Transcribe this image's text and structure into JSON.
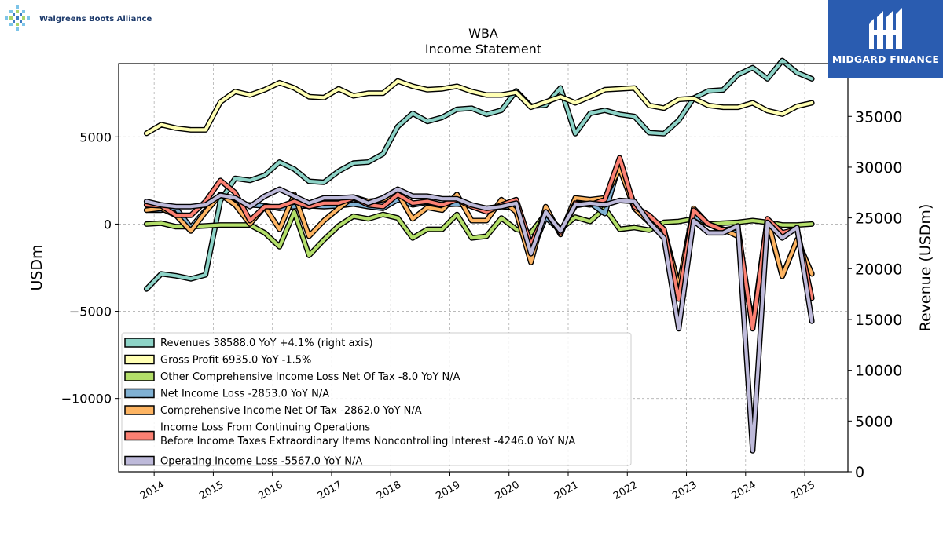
{
  "branding": {
    "left_logo_text": "Walgreens Boots Alliance",
    "right_logo_text": "MIDGARD FINANCE"
  },
  "colors": {
    "revenues": "#8dd3c7",
    "gross_profit": "#ffffb3",
    "other_ci": "#b3de69",
    "net_income": "#80b1d3",
    "comprehensive_income": "#fdb462",
    "income_before_tax": "#fb8072",
    "operating_income": "#bebada",
    "brand_right_bg": "#2a5cb0"
  },
  "chart_data": {
    "type": "line",
    "title": "WBA",
    "subtitle": "Income Statement",
    "ylabel": "USDm",
    "ylabel_right": "Revenue (USDm)",
    "ylim": [
      -14200,
      9200
    ],
    "ylim_right": [
      0,
      40200
    ],
    "yticks": [
      -10000,
      -5000,
      0,
      5000
    ],
    "yticks_right": [
      0,
      5000,
      10000,
      15000,
      20000,
      25000,
      30000,
      35000
    ],
    "xlim": [
      2013.4,
      2025.73
    ],
    "xticks": [
      "2014",
      "2015",
      "2016",
      "2017",
      "2018",
      "2019",
      "2020",
      "2021",
      "2022",
      "2023",
      "2024",
      "2025"
    ],
    "grid": true,
    "legend_position": "lower-left",
    "x": [
      2013.87,
      2014.12,
      2014.37,
      2014.62,
      2014.87,
      2015.12,
      2015.37,
      2015.62,
      2015.87,
      2016.12,
      2016.37,
      2016.62,
      2016.87,
      2017.12,
      2017.37,
      2017.62,
      2017.87,
      2018.12,
      2018.37,
      2018.62,
      2018.87,
      2019.12,
      2019.37,
      2019.62,
      2019.87,
      2020.12,
      2020.37,
      2020.62,
      2020.87,
      2021.12,
      2021.37,
      2021.62,
      2021.87,
      2022.12,
      2022.37,
      2022.62,
      2022.87,
      2023.12,
      2023.37,
      2023.62,
      2023.87,
      2024.12,
      2024.37,
      2024.62,
      2024.87,
      2025.12
    ],
    "series": [
      {
        "key": "revenues",
        "name": "Revenues",
        "legend": "Revenues  38588.0 YoY +4.1% (right axis)",
        "axis": "right",
        "values": [
          18000,
          19500,
          19300,
          19000,
          19400,
          26700,
          28900,
          28700,
          29200,
          30500,
          29800,
          28600,
          28500,
          29600,
          30400,
          30500,
          31300,
          34000,
          35300,
          34500,
          34900,
          35700,
          35800,
          35200,
          35600,
          37500,
          36000,
          36100,
          37800,
          33300,
          35300,
          35600,
          35200,
          35000,
          33400,
          33300,
          34600,
          36800,
          37500,
          37600,
          39100,
          39800,
          38700,
          40500,
          39300,
          38700
        ]
      },
      {
        "key": "gross_profit",
        "name": "Gross Profit",
        "legend": "Gross Profit  6935.0 YoY -1.5%",
        "axis": "left",
        "values": [
          5200,
          5700,
          5500,
          5400,
          5400,
          7000,
          7600,
          7400,
          7700,
          8100,
          7800,
          7300,
          7250,
          7750,
          7350,
          7500,
          7500,
          8200,
          7900,
          7700,
          7750,
          7900,
          7600,
          7400,
          7400,
          7550,
          6700,
          7000,
          7300,
          6950,
          7300,
          7700,
          7750,
          7800,
          6800,
          6650,
          7150,
          7200,
          6800,
          6700,
          6700,
          6950,
          6500,
          6300,
          6750,
          6950
        ]
      },
      {
        "key": "other_ci",
        "name": "Other Comprehensive Income Loss Net Of Tax",
        "legend": "Other Comprehensive Income Loss Net Of Tax  -8.0 YoY N/A",
        "axis": "left",
        "values": [
          0,
          50,
          -150,
          -150,
          -100,
          -50,
          -50,
          -50,
          -500,
          -1300,
          700,
          -1800,
          -900,
          -100,
          450,
          300,
          550,
          350,
          -800,
          -300,
          -300,
          550,
          -800,
          -700,
          350,
          -300,
          -500,
          600,
          -300,
          400,
          150,
          900,
          -300,
          -200,
          -350,
          100,
          150,
          300,
          0,
          50,
          100,
          200,
          100,
          -50,
          -50,
          0
        ]
      },
      {
        "key": "net_income",
        "name": "Net Income Loss",
        "legend": "Net Income Loss  -2853.0 YoY N/A",
        "axis": "left",
        "values": [
          800,
          800,
          900,
          -200,
          800,
          1700,
          1150,
          1100,
          1050,
          900,
          1000,
          1050,
          1000,
          1050,
          1150,
          1000,
          900,
          1400,
          1100,
          1250,
          1100,
          1150,
          1050,
          900,
          1000,
          950,
          -1700,
          400,
          -400,
          1050,
          1200,
          600,
          3500,
          1100,
          300,
          -400,
          -3500,
          500,
          0,
          -400,
          -500,
          -5900,
          200,
          -3000,
          -900,
          -2850
        ]
      },
      {
        "key": "comprehensive_income",
        "name": "Comprehensive Income Net Of Tax",
        "legend": "Comprehensive Income Net Of Tax  -2862.0 YoY N/A",
        "axis": "left",
        "values": [
          800,
          900,
          500,
          -400,
          700,
          1700,
          1100,
          0,
          1000,
          -300,
          1700,
          -700,
          200,
          900,
          1550,
          1300,
          1400,
          1750,
          300,
          950,
          800,
          1700,
          200,
          200,
          1400,
          700,
          -2200,
          1000,
          -600,
          1500,
          1400,
          1500,
          3200,
          900,
          100,
          -300,
          -3600,
          900,
          0,
          -300,
          -700,
          -5800,
          300,
          -3000,
          -900,
          -2850
        ]
      },
      {
        "key": "income_before_tax",
        "name": "Income Loss From Continuing Operations Before Income Taxes Extraordinary Items Noncontrolling Interest",
        "legend_lines": [
          "Income Loss From Continuing Operations",
          "Before Income Taxes Extraordinary Items Noncontrolling Interest  -4246.0 YoY N/A"
        ],
        "axis": "left",
        "values": [
          1100,
          1050,
          500,
          500,
          1300,
          2500,
          1800,
          200,
          1000,
          1000,
          1300,
          1000,
          1200,
          1200,
          1500,
          1100,
          1000,
          1700,
          1200,
          1300,
          1100,
          1400,
          1000,
          700,
          1100,
          1400,
          -1200,
          700,
          -500,
          1200,
          1100,
          1400,
          3800,
          1000,
          500,
          -300,
          -4300,
          800,
          0,
          -350,
          -200,
          -6000,
          300,
          -500,
          -300,
          -4250
        ]
      },
      {
        "key": "operating_income",
        "name": "Operating Income Loss",
        "legend": "Operating Income Loss  -5567.0 YoY N/A",
        "axis": "left",
        "values": [
          1300,
          1100,
          1000,
          1000,
          1100,
          1650,
          1500,
          1000,
          1600,
          2000,
          1600,
          1200,
          1500,
          1500,
          1550,
          1200,
          1500,
          2000,
          1600,
          1600,
          1450,
          1450,
          1100,
          900,
          1000,
          1200,
          -1700,
          700,
          -400,
          1100,
          1200,
          1100,
          1350,
          1300,
          100,
          -800,
          -6000,
          200,
          -500,
          -500,
          -100,
          -13000,
          100,
          -800,
          -200,
          -5570
        ]
      }
    ]
  }
}
